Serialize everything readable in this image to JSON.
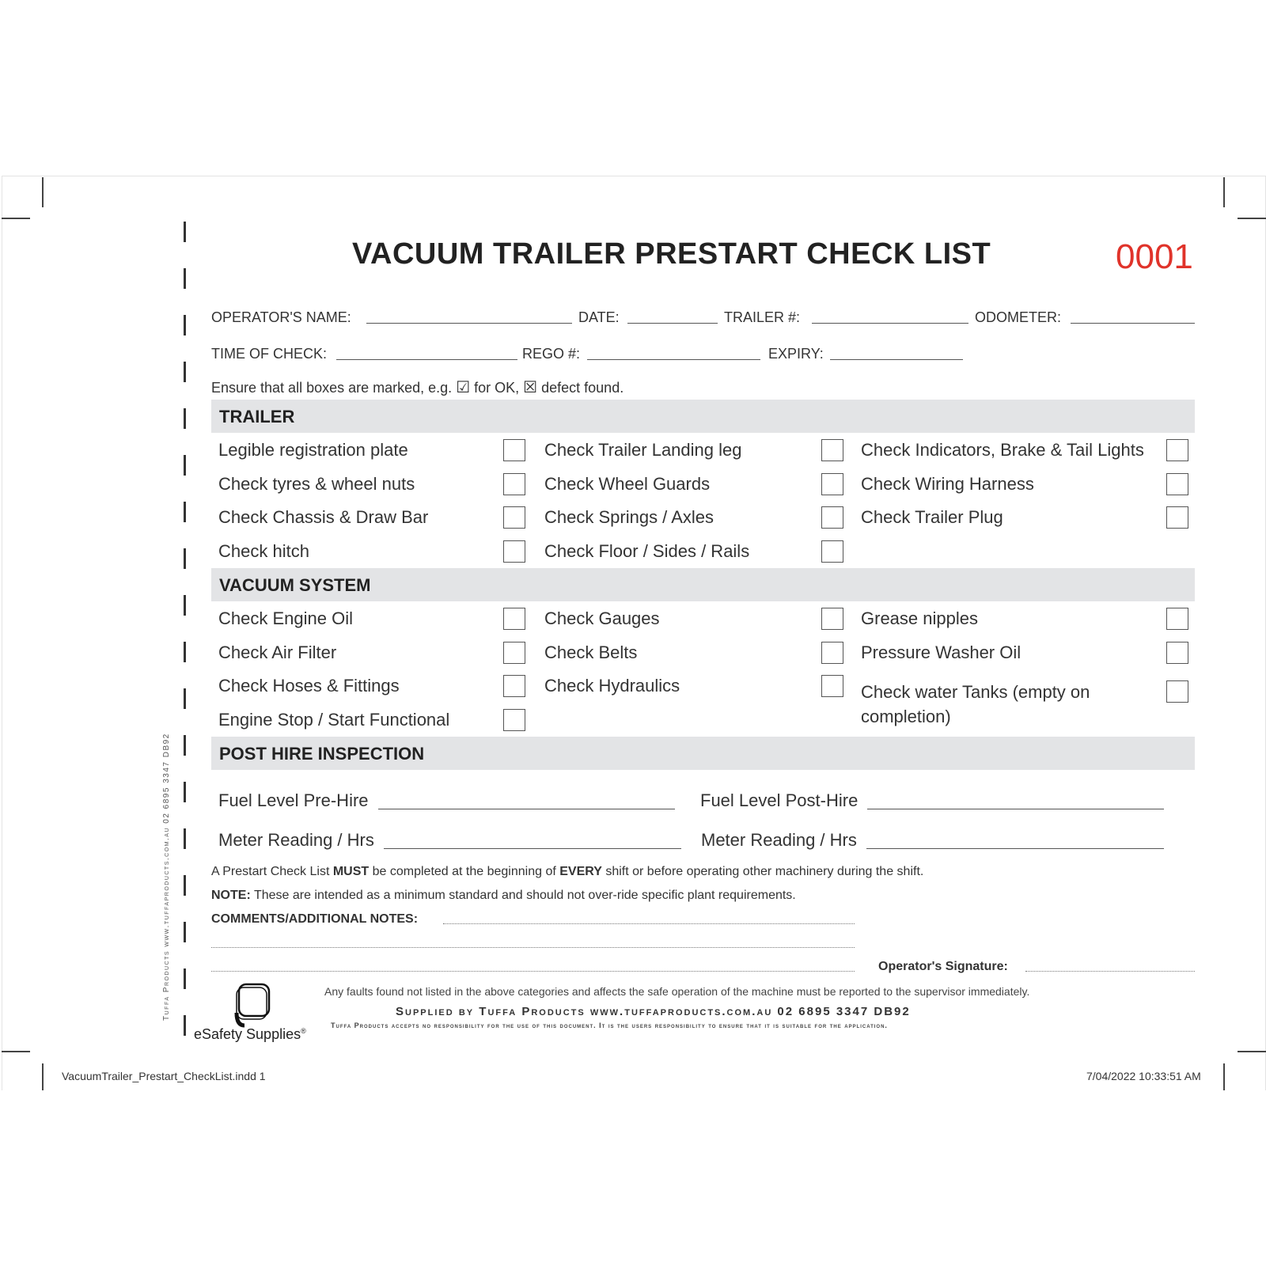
{
  "title": "VACUUM TRAILER PRESTART CHECK LIST",
  "serial": "0001",
  "fields": {
    "operator": "OPERATOR'S NAME:",
    "date": "DATE:",
    "trailer": "TRAILER #:",
    "odometer": "ODOMETER:",
    "time": "TIME OF CHECK:",
    "rego": "REGO #:",
    "expiry": "EXPIRY:"
  },
  "instruction": {
    "pre": "Ensure that all boxes are marked, e.g.",
    "ok": "for OK,",
    "defect": "defect found."
  },
  "sections": {
    "trailer": {
      "title": "TRAILER",
      "col1": [
        "Legible registration plate",
        "Check tyres & wheel nuts",
        "Check Chassis & Draw Bar",
        "Check hitch"
      ],
      "col2": [
        "Check Trailer Landing leg",
        "Check Wheel Guards",
        "Check Springs / Axles",
        "Check Floor / Sides / Rails"
      ],
      "col3": [
        "Check Indicators, Brake & Tail Lights",
        "Check Wiring Harness",
        "Check Trailer Plug"
      ]
    },
    "vacuum": {
      "title": "VACUUM SYSTEM",
      "col1": [
        "Check Engine Oil",
        "Check Air Filter",
        "Check Hoses & Fittings",
        "Engine Stop / Start Functional"
      ],
      "col2": [
        "Check Gauges",
        "Check Belts",
        "Check Hydraulics"
      ],
      "col3": [
        "Grease nipples",
        "Pressure Washer Oil",
        "Check water Tanks (empty on",
        "completion)"
      ]
    },
    "post": {
      "title": "POST HIRE INSPECTION",
      "fuel_pre": "Fuel Level Pre-Hire",
      "fuel_post": "Fuel Level Post-Hire",
      "meter1": "Meter Reading / Hrs",
      "meter2": "Meter Reading / Hrs"
    }
  },
  "notes": {
    "line1_a": "A Prestart Check List ",
    "line1_b": "MUST",
    "line1_c": " be completed at the beginning of ",
    "line1_d": "EVERY",
    "line1_e": " shift or before operating other machinery during the shift.",
    "note_b": "NOTE:",
    "note_t": " These are intended as a minimum standard and should not over-ride specific plant requirements.",
    "comments": "COMMENTS/ADDITIONAL NOTES:",
    "signature": "Operator's Signature:",
    "faults": "Any faults found not listed in the above categories and affects the safe operation of the machine must be reported to the supervisor immediately.",
    "supplied": "Supplied by Tuffa Products   www.tuffaproducts.com.au   02 6895 3347  DB92",
    "disclaimer": "Tuffa Products accepts no responsibility for the use of this document. It is the users responsibility to ensure that it is suitable for the application.",
    "vertical": "Tuffa Products www.tuffaproducts.com.au 02 6895 3347 DB92"
  },
  "logo": {
    "text": "eSafety Supplies",
    "reg": "®"
  },
  "footer": {
    "file": "VacuumTrailer_Prestart_CheckList.indd   1",
    "datetime": "7/04/2022   10:33:51 AM"
  }
}
